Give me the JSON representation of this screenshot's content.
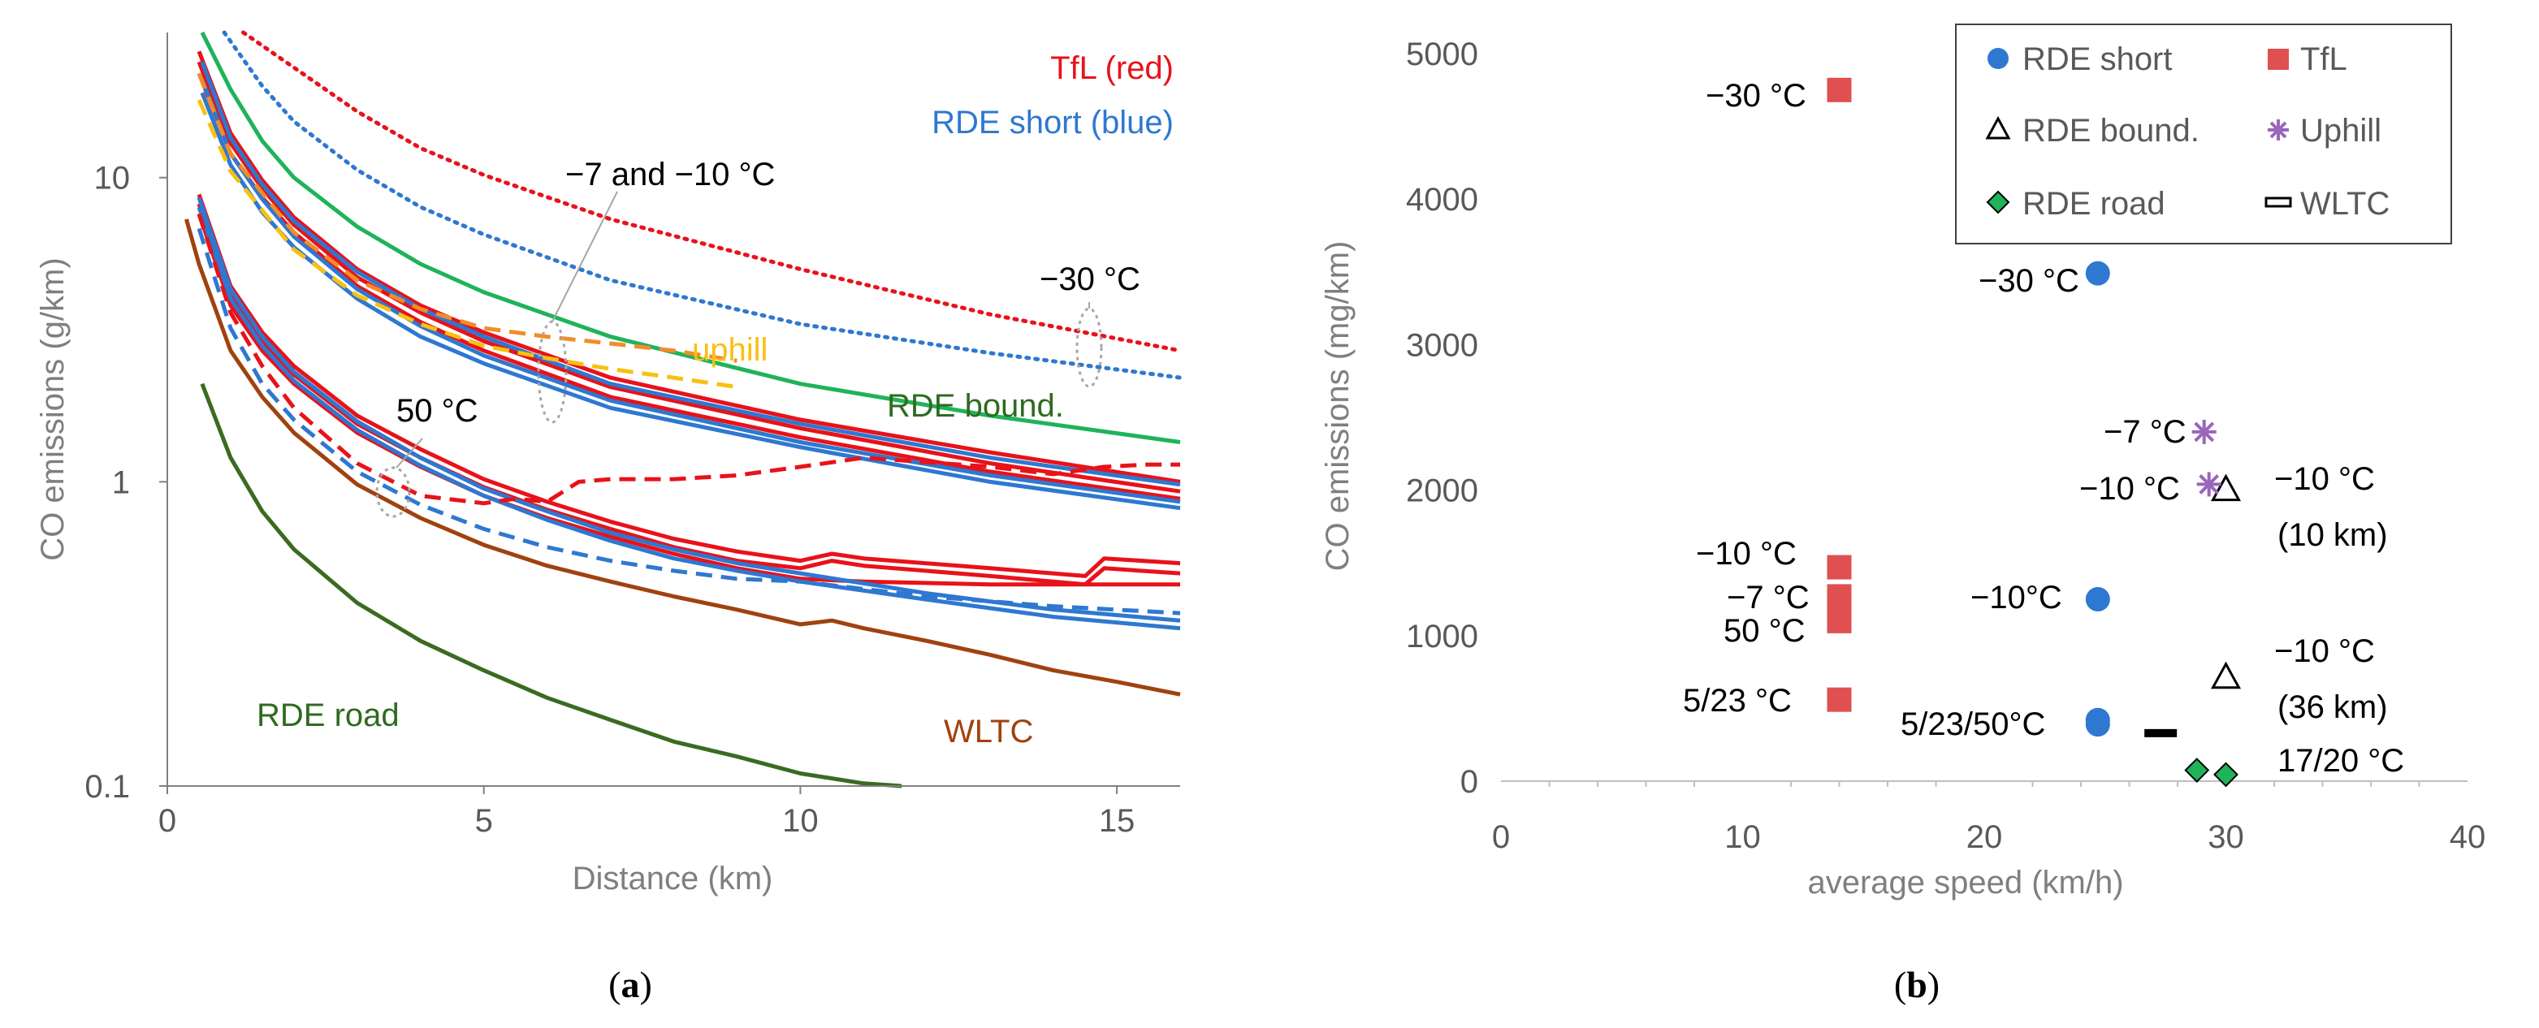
{
  "chart_data": [
    {
      "type": "line",
      "panel_label": "a",
      "title": "",
      "xlabel": "Distance (km)",
      "ylabel": "CO emissions (g/km)",
      "xlim": [
        0,
        16
      ],
      "ylim": [
        0.1,
        30
      ],
      "yscale": "log",
      "x_ticks": [
        0,
        5,
        10,
        15
      ],
      "x_tick_labels": [
        "0",
        "5",
        "10",
        "15"
      ],
      "y_ticks": [
        0.1,
        1,
        10
      ],
      "y_tick_labels": [
        "0.1",
        "1",
        "10"
      ],
      "grid": false,
      "colors": {
        "red": "#e8121a",
        "blue": "#2e78d1",
        "green": "#1fb35a",
        "orange": "#f28c28",
        "yellow": "#f9c012",
        "brown": "#a0420f",
        "darkgreen": "#3a6b21",
        "callout": "#a6a6a6"
      },
      "series": [
        {
          "name": "TfL -30 °C",
          "color": "#e8121a",
          "style": "dotted",
          "x": [
            1.2,
            2,
            3,
            4,
            5,
            7,
            10,
            13,
            16
          ],
          "y": [
            30,
            23,
            16.5,
            12.5,
            10.2,
            7.3,
            5,
            3.55,
            2.7
          ]
        },
        {
          "name": "RDE short -30 °C",
          "color": "#2e78d1",
          "style": "dotted",
          "x": [
            0.9,
            1.5,
            2,
            3,
            4,
            5,
            7,
            10,
            13,
            16
          ],
          "y": [
            30,
            20,
            15.3,
            10.6,
            8,
            6.5,
            4.6,
            3.3,
            2.65,
            2.2
          ]
        },
        {
          "name": "RDE bound.",
          "color": "#1fb35a",
          "style": "solid",
          "x": [
            0.55,
            1,
            1.5,
            2,
            3,
            4,
            5,
            7,
            10,
            13,
            16
          ],
          "y": [
            30,
            19.5,
            13.2,
            10,
            6.9,
            5.2,
            4.2,
            3,
            2.1,
            1.65,
            1.35
          ]
        },
        {
          "name": "TfL -7/-10 °C (a)",
          "color": "#e8121a",
          "style": "solid",
          "x": [
            0.5,
            1,
            1.5,
            2,
            3,
            4,
            5,
            7,
            10,
            13,
            16
          ],
          "y": [
            26,
            14,
            9.8,
            7.4,
            5,
            3.8,
            3.1,
            2.2,
            1.6,
            1.25,
            1.0
          ]
        },
        {
          "name": "TfL -7/-10 °C (b)",
          "color": "#e8121a",
          "style": "solid",
          "x": [
            0.5,
            1,
            1.5,
            2,
            3,
            4,
            5,
            7,
            10,
            13,
            16
          ],
          "y": [
            24,
            13,
            9.2,
            7,
            4.7,
            3.6,
            2.9,
            2.05,
            1.5,
            1.15,
            0.93
          ]
        },
        {
          "name": "TfL -7/-10 °C (c)",
          "color": "#e8121a",
          "style": "solid",
          "x": [
            0.5,
            1,
            1.5,
            2,
            3,
            4,
            5,
            7,
            10,
            13,
            16
          ],
          "y": [
            22,
            12,
            8.6,
            6.6,
            4.4,
            3.35,
            2.7,
            1.9,
            1.4,
            1.08,
            0.88
          ]
        },
        {
          "name": "RDE short -7/-10 °C (a)",
          "color": "#2e78d1",
          "style": "solid",
          "x": [
            0.55,
            1,
            1.5,
            2,
            3,
            4,
            5,
            7,
            10,
            13,
            16
          ],
          "y": [
            24,
            13.5,
            9.5,
            7.2,
            4.9,
            3.7,
            3,
            2.1,
            1.55,
            1.2,
            0.98
          ]
        },
        {
          "name": "RDE short -7/-10 °C (b)",
          "color": "#2e78d1",
          "style": "solid",
          "x": [
            0.55,
            1,
            1.5,
            2,
            3,
            4,
            5,
            7,
            10,
            13,
            16
          ],
          "y": [
            21,
            12,
            8.5,
            6.4,
            4.3,
            3.25,
            2.6,
            1.85,
            1.35,
            1.05,
            0.86
          ]
        },
        {
          "name": "RDE short -7/-10 °C (c)",
          "color": "#2e78d1",
          "style": "solid",
          "x": [
            0.55,
            1,
            1.5,
            2,
            3,
            4,
            5,
            7,
            10,
            13,
            16
          ],
          "y": [
            19,
            11,
            7.7,
            5.9,
            4,
            3,
            2.45,
            1.75,
            1.3,
            1.0,
            0.82
          ]
        },
        {
          "name": "uphill -7 °C (orange)",
          "color": "#f28c28",
          "style": "dashed",
          "x": [
            0.5,
            1,
            2,
            3,
            4,
            5,
            6,
            7,
            8,
            9
          ],
          "y": [
            22,
            12,
            6.6,
            4.6,
            3.7,
            3.2,
            3.0,
            2.85,
            2.7,
            2.5
          ]
        },
        {
          "name": "uphill -10 °C (yellow)",
          "color": "#f9c012",
          "style": "dashed",
          "x": [
            0.5,
            1,
            2,
            3,
            4,
            5,
            6,
            7,
            8,
            9
          ],
          "y": [
            18,
            10.5,
            5.8,
            4.1,
            3.3,
            2.8,
            2.55,
            2.35,
            2.2,
            2.05
          ]
        },
        {
          "name": "TfL 5/23/50 °C (a)",
          "color": "#e8121a",
          "style": "solid",
          "x": [
            0.5,
            1,
            1.5,
            2,
            3,
            4,
            5,
            6,
            7,
            8,
            9,
            10,
            10.5,
            11,
            13,
            14.5,
            14.8,
            16
          ],
          "y": [
            8.8,
            4.4,
            3.1,
            2.4,
            1.65,
            1.28,
            1.02,
            0.86,
            0.74,
            0.65,
            0.59,
            0.55,
            0.58,
            0.56,
            0.52,
            0.49,
            0.56,
            0.54
          ]
        },
        {
          "name": "TfL 5/23/50 °C (b)",
          "color": "#e8121a",
          "style": "solid",
          "x": [
            0.5,
            1,
            1.5,
            2,
            3,
            4,
            5,
            6,
            7,
            8,
            9,
            10,
            10.5,
            11,
            13,
            14.5,
            14.8,
            16
          ],
          "y": [
            8.2,
            4.1,
            2.9,
            2.25,
            1.55,
            1.2,
            0.96,
            0.81,
            0.7,
            0.61,
            0.55,
            0.52,
            0.55,
            0.53,
            0.49,
            0.46,
            0.52,
            0.5
          ]
        },
        {
          "name": "TfL 5/23/50 °C (c)",
          "color": "#e8121a",
          "style": "solid",
          "x": [
            0.5,
            1,
            1.5,
            2,
            3,
            4,
            5,
            6,
            7,
            8,
            9,
            10,
            11,
            13,
            16
          ],
          "y": [
            7.6,
            3.8,
            2.7,
            2.1,
            1.45,
            1.12,
            0.9,
            0.76,
            0.66,
            0.58,
            0.52,
            0.48,
            0.47,
            0.46,
            0.46
          ]
        },
        {
          "name": "RDE short 5/23/50 °C (a)",
          "color": "#2e78d1",
          "style": "solid",
          "x": [
            0.5,
            1,
            1.5,
            2,
            3,
            4,
            5,
            6,
            7,
            8,
            9,
            10,
            12,
            14,
            16
          ],
          "y": [
            8.6,
            4.3,
            3.0,
            2.3,
            1.58,
            1.2,
            0.95,
            0.8,
            0.68,
            0.6,
            0.54,
            0.5,
            0.43,
            0.38,
            0.35
          ]
        },
        {
          "name": "RDE short 5/23/50 °C (b)",
          "color": "#2e78d1",
          "style": "solid",
          "x": [
            0.5,
            1,
            1.5,
            2,
            3,
            4,
            5,
            6,
            7,
            8,
            9,
            10,
            12,
            14,
            16
          ],
          "y": [
            8.0,
            4.0,
            2.8,
            2.15,
            1.48,
            1.13,
            0.9,
            0.75,
            0.64,
            0.56,
            0.51,
            0.47,
            0.41,
            0.36,
            0.33
          ]
        },
        {
          "name": "TfL 50 °C",
          "color": "#e8121a",
          "style": "dashed",
          "x": [
            0.5,
            1,
            1.5,
            2,
            3,
            4,
            5,
            5.5,
            6,
            6.5,
            7,
            8,
            9,
            10,
            11,
            12,
            13,
            14,
            14.8,
            15.5,
            16
          ],
          "y": [
            7.6,
            3.6,
            2.4,
            1.75,
            1.15,
            0.9,
            0.85,
            0.88,
            0.86,
            1.0,
            1.02,
            1.02,
            1.05,
            1.12,
            1.2,
            1.16,
            1.12,
            1.06,
            1.12,
            1.14,
            1.14
          ]
        },
        {
          "name": "RDE short 50 °C",
          "color": "#2e78d1",
          "style": "dashed",
          "x": [
            0.5,
            1,
            1.5,
            2,
            3,
            4,
            5,
            6,
            7,
            8,
            9,
            10,
            12,
            14,
            16
          ],
          "y": [
            6.8,
            3.2,
            2.1,
            1.6,
            1.08,
            0.84,
            0.7,
            0.61,
            0.55,
            0.51,
            0.48,
            0.47,
            0.42,
            0.39,
            0.37
          ]
        },
        {
          "name": "WLTC",
          "color": "#a0420f",
          "style": "solid",
          "x": [
            0.3,
            0.5,
            1,
            1.5,
            2,
            3,
            4,
            5,
            6,
            7,
            8,
            9,
            10,
            10.5,
            11,
            12,
            13,
            14,
            15,
            16
          ],
          "y": [
            7.3,
            5.2,
            2.7,
            1.9,
            1.45,
            0.98,
            0.76,
            0.62,
            0.53,
            0.47,
            0.42,
            0.38,
            0.34,
            0.35,
            0.33,
            0.3,
            0.27,
            0.24,
            0.22,
            0.2
          ]
        },
        {
          "name": "RDE road",
          "color": "#3a6b21",
          "style": "solid",
          "x": [
            0.55,
            1,
            1.5,
            2,
            3,
            4,
            5,
            6,
            7,
            8,
            9,
            10,
            11,
            11.6
          ],
          "y": [
            2.1,
            1.2,
            0.8,
            0.6,
            0.4,
            0.3,
            0.24,
            0.195,
            0.165,
            0.14,
            0.125,
            0.11,
            0.102,
            0.1
          ]
        }
      ],
      "annotations": {
        "tfl_label": "TfL (red)",
        "rde_short_label": "RDE short (blue)",
        "cold_label": "−7 and −10 °C",
        "minus30_label": "−30 °C",
        "uphill_label": "uphill",
        "bound_label": "RDE bound.",
        "fifty_label": "50 °C",
        "road_label": "RDE road",
        "wltc_label": "WLTC"
      },
      "caption": {
        "open": "(",
        "letter": "a",
        "close": ")"
      }
    },
    {
      "type": "scatter",
      "panel_label": "b",
      "title": "",
      "xlabel": "average speed (km/h)",
      "ylabel": "CO emissions (mg/km)",
      "xlim": [
        0,
        40
      ],
      "ylim": [
        0,
        5000
      ],
      "x_ticks": [
        0,
        10,
        20,
        30,
        40
      ],
      "x_tick_labels": [
        "0",
        "10",
        "20",
        "30",
        "40"
      ],
      "y_ticks": [
        0,
        1000,
        2000,
        3000,
        4000,
        5000
      ],
      "y_tick_labels": [
        "0",
        "1000",
        "2000",
        "3000",
        "4000",
        "5000"
      ],
      "grid": false,
      "legend_position": "top-right",
      "legend": [
        {
          "label": "RDE short",
          "marker": "circle",
          "color": "#2e78d1"
        },
        {
          "label": "TfL",
          "marker": "square",
          "color": "#e05050"
        },
        {
          "label": "RDE bound.",
          "marker": "triangle",
          "color": "#000000"
        },
        {
          "label": "Uphill",
          "marker": "star",
          "color": "#9966bb"
        },
        {
          "label": "RDE road",
          "marker": "diamond",
          "color": "#1fb35a"
        },
        {
          "label": "WLTC",
          "marker": "dash",
          "color": "#000000"
        }
      ],
      "series": [
        {
          "name": "TfL",
          "marker": "square",
          "color": "#e05050",
          "points": [
            [
              14,
              4750
            ],
            [
              14,
              1470
            ],
            [
              14,
              1270
            ],
            [
              14,
              1190
            ],
            [
              14,
              1100
            ],
            [
              14,
              560
            ]
          ]
        },
        {
          "name": "RDE short",
          "marker": "circle",
          "color": "#2e78d1",
          "points": [
            [
              24.7,
              3490
            ],
            [
              24.7,
              1250
            ],
            [
              24.7,
              420
            ],
            [
              24.7,
              390
            ]
          ]
        },
        {
          "name": "RDE bound.",
          "marker": "triangle",
          "color": "#000000",
          "points": [
            [
              30,
              2000
            ],
            [
              30,
              710
            ]
          ]
        },
        {
          "name": "Uphill",
          "marker": "star",
          "color": "#9966bb",
          "points": [
            [
              29.1,
              2400
            ],
            [
              29.3,
              2040
            ]
          ]
        },
        {
          "name": "RDE road",
          "marker": "diamond",
          "color": "#1fb35a",
          "points": [
            [
              28.8,
              75
            ],
            [
              30,
              45
            ]
          ]
        },
        {
          "name": "WLTC",
          "marker": "dash",
          "color": "#000000",
          "points": [
            [
              27.3,
              330
            ]
          ]
        }
      ],
      "annotations": {
        "tfl_m30": "−30 °C",
        "rde_m30": "−30 °C",
        "up_m7": "−7 °C",
        "up_m10": "−10 °C",
        "bound_m10_a": "−10 °C",
        "bound_10km": "(10 km)",
        "tfl_m10": "−10 °C",
        "tfl_m7": "−7 °C",
        "tfl_50": "50 °C",
        "rde_m10": "−10°C",
        "bound_m10_b": "−10 °C",
        "bound_36km": "(36 km)",
        "tfl_523": "5/23 °C",
        "rde_52350": "5/23/50°C",
        "road_1720": "17/20 °C"
      },
      "caption": {
        "open": "(",
        "letter": "b",
        "close": ")"
      }
    }
  ]
}
